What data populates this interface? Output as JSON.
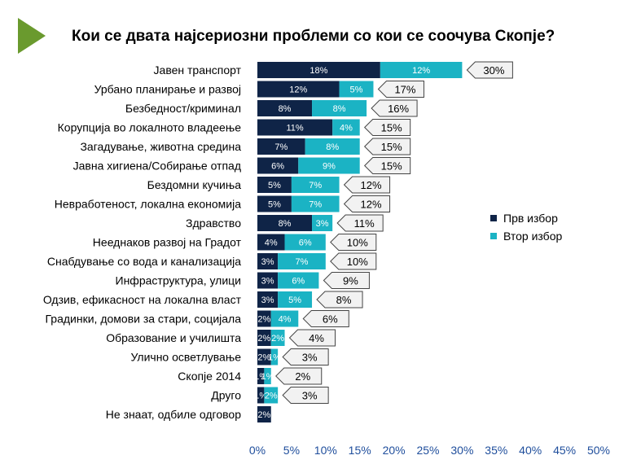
{
  "title": "Кои се двата најсериозни проблеми со кои се соочува Скопје?",
  "colors": {
    "first": "#0f2447",
    "second": "#1bb3c4",
    "accent_triangle": "#6a9a2e",
    "callout_fill": "#f2f2f2",
    "callout_stroke": "#444444",
    "tick_text": "#1f4e9c"
  },
  "chart_data": {
    "type": "bar",
    "orientation": "horizontal",
    "stacked": true,
    "title": "Кои се двата најсериозни проблеми со кои се соочува Скопје?",
    "xlabel": "",
    "ylabel": "",
    "xlim": [
      0,
      50
    ],
    "x_ticks": [
      "0%",
      "5%",
      "10%",
      "15%",
      "20%",
      "25%",
      "30%",
      "35%",
      "40%",
      "45%",
      "50%"
    ],
    "grid": false,
    "legend_position": "right",
    "categories": [
      "Јавен транспорт",
      "Урбано планирање и развој",
      "Безбедност/криминал",
      "Корупција во локалното владеење",
      "Загадување, животна средина",
      "Јавна хигиена/Собирање отпад",
      "Бездомни кучиња",
      "Невработеност, локална економија",
      "Здравство",
      "Нееднаков развој на Градот",
      "Снабдување со вода и канализација",
      "Инфраструктура, улици",
      "Одзив, ефикасност на локална власт",
      "Градинки, домови за стари, социјала",
      "Образование и училишта",
      "Улично осветлување",
      "Скопје 2014",
      "Друго",
      "Не знаат, одбиле одговор"
    ],
    "series": [
      {
        "name": "Прв избор",
        "values": [
          18,
          12,
          8,
          11,
          7,
          6,
          5,
          5,
          8,
          4,
          3,
          3,
          3,
          2,
          2,
          2,
          1,
          1,
          2
        ],
        "labels": [
          "18%",
          "12%",
          "8%",
          "11%",
          "7%",
          "6%",
          "5%",
          "5%",
          "8%",
          "4%",
          "3%",
          "3%",
          "3%",
          "2%",
          "2%",
          "2%",
          "1%",
          "1%",
          "2%"
        ]
      },
      {
        "name": "Втор избор",
        "values": [
          12,
          5,
          8,
          4,
          8,
          9,
          7,
          7,
          3,
          6,
          7,
          6,
          5,
          4,
          2,
          1,
          1,
          2,
          0
        ],
        "labels": [
          "12%",
          "5%",
          "8%",
          "4%",
          "8%",
          "9%",
          "7%",
          "7%",
          "3%",
          "6%",
          "7%",
          "6%",
          "5%",
          "4%",
          "2%",
          "1%",
          "1%",
          "2%",
          ""
        ]
      }
    ],
    "totals": [
      "30%",
      "17%",
      "16%",
      "15%",
      "15%",
      "15%",
      "12%",
      "12%",
      "11%",
      "10%",
      "10%",
      "9%",
      "8%",
      "6%",
      "4%",
      "3%",
      "2%",
      "3%",
      ""
    ]
  }
}
